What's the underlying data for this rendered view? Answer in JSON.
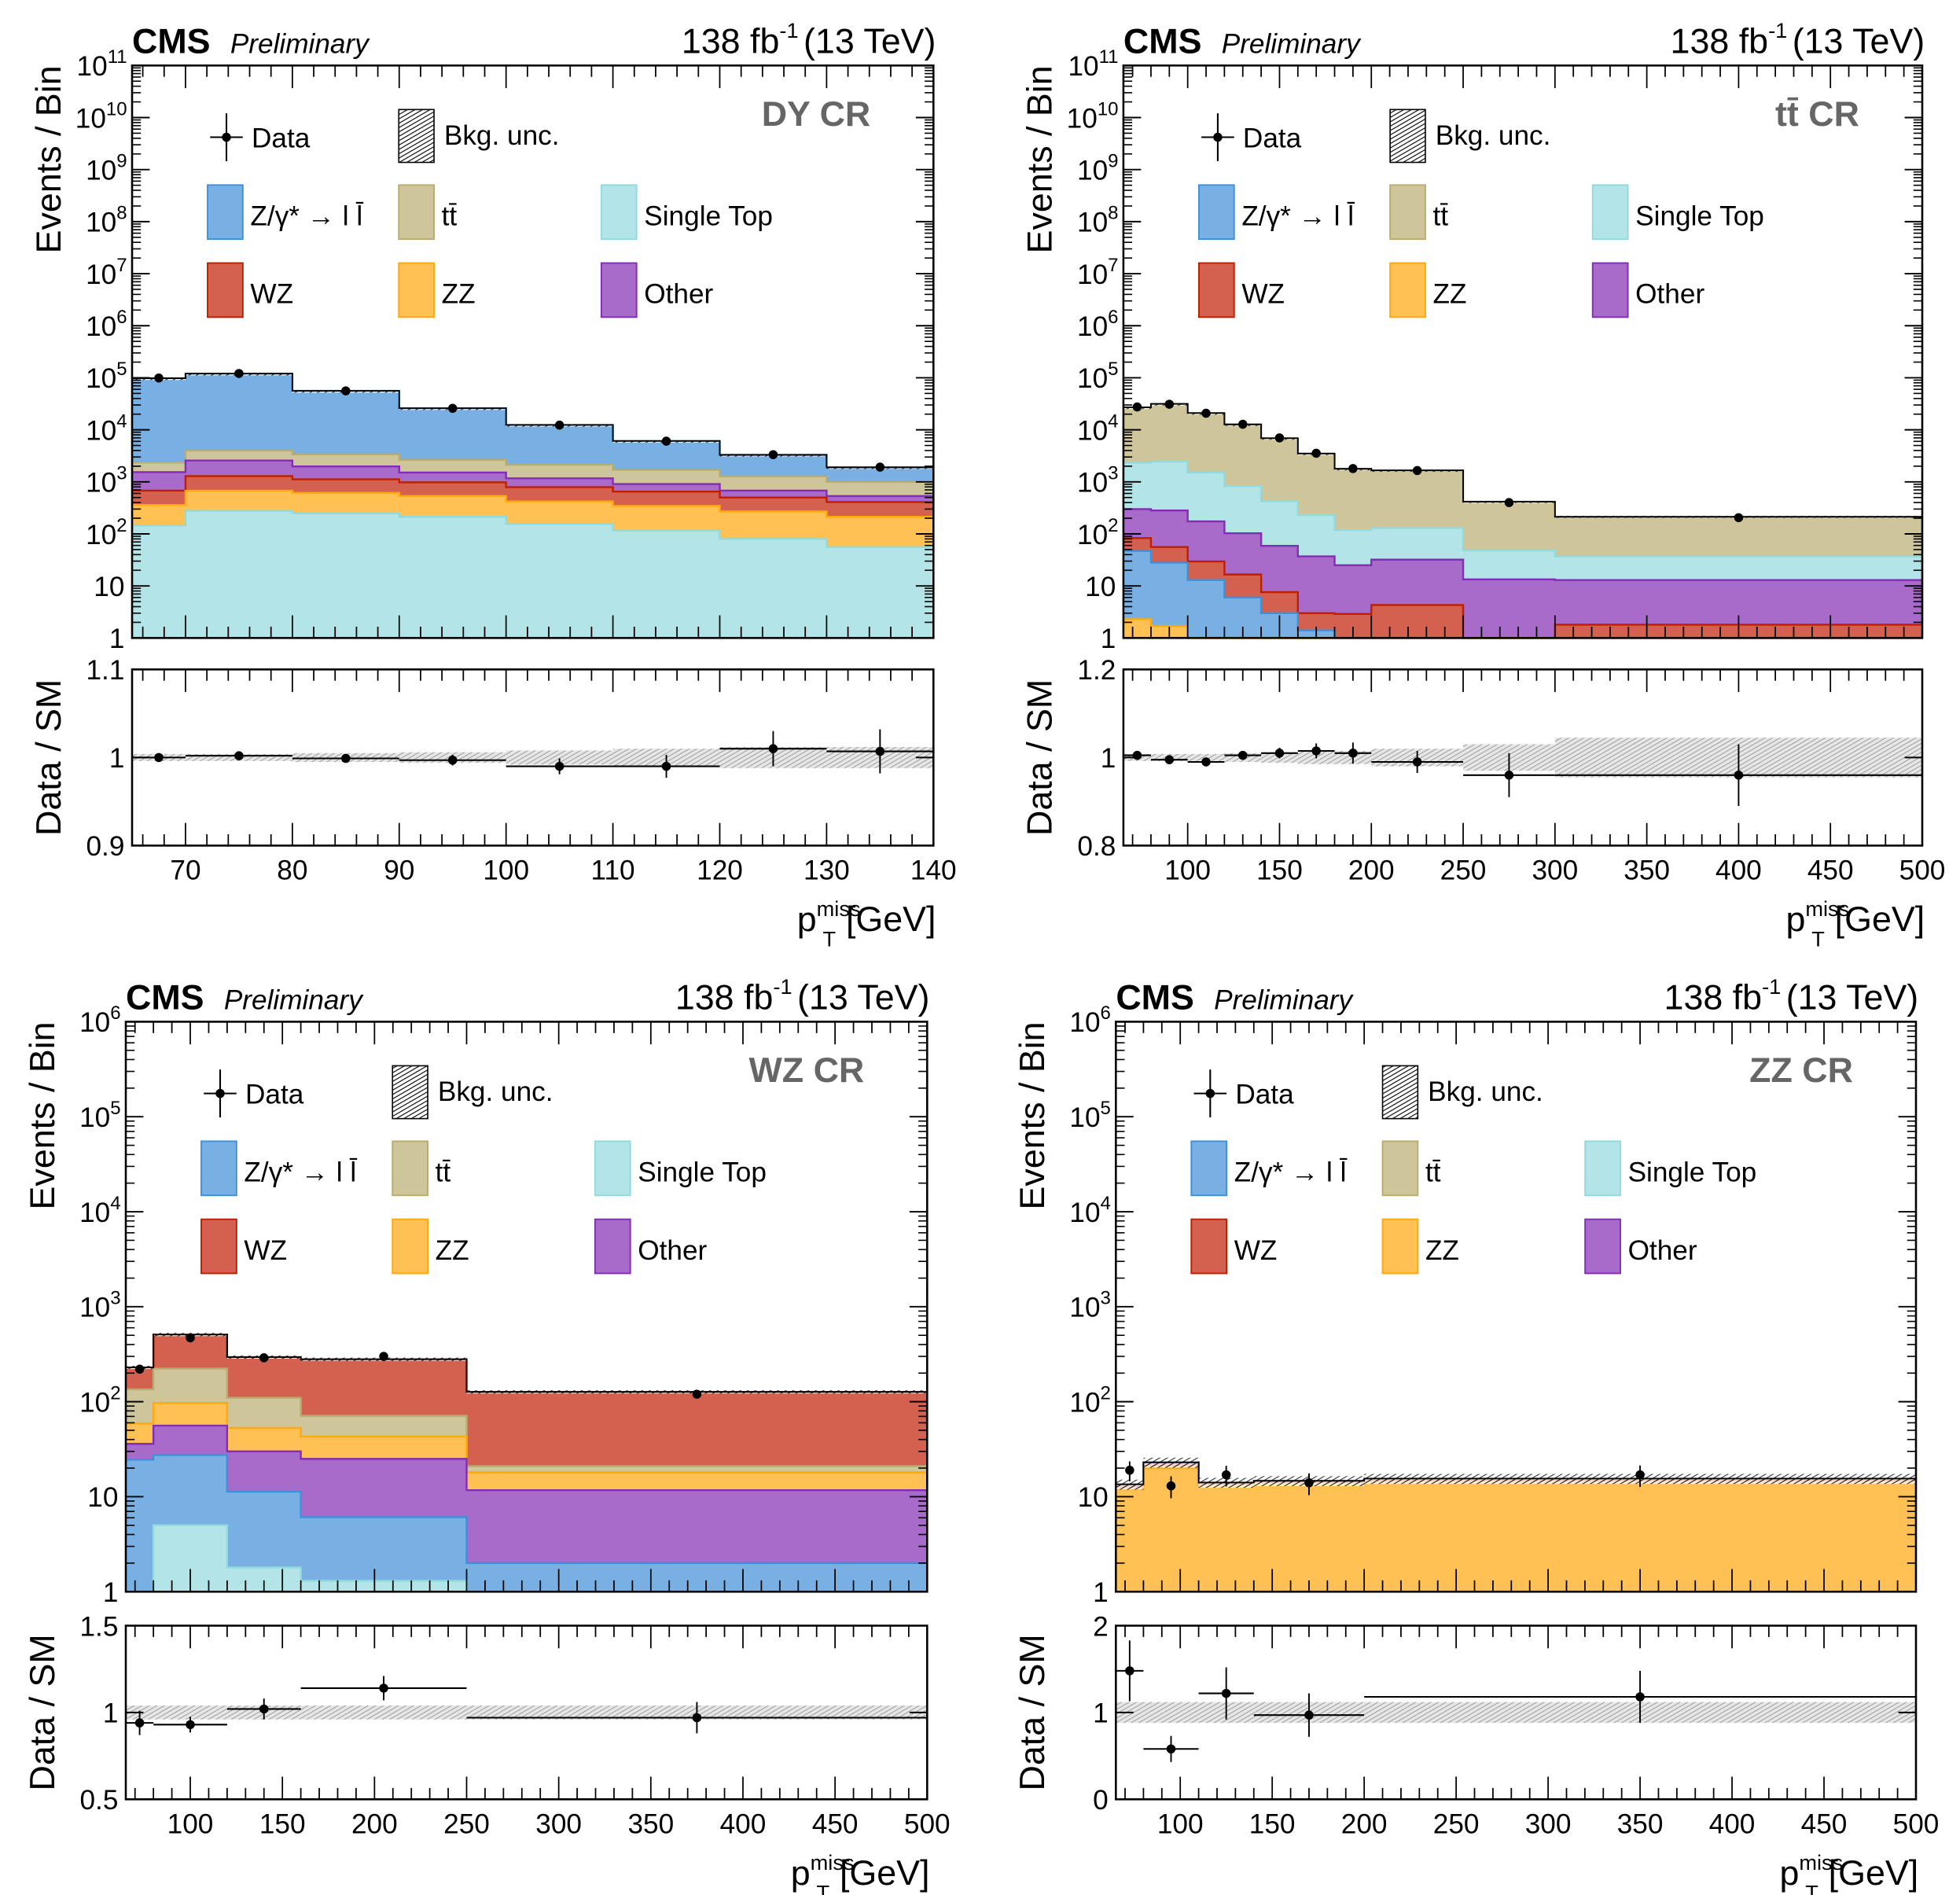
{
  "header": {
    "experiment": "CMS",
    "status": "Preliminary",
    "lumi": "138 fb",
    "lumi_exp": "-1",
    "energy": "(13 TeV)"
  },
  "legend": {
    "data": "Data",
    "unc": "Bkg. unc."
  },
  "processes": [
    {
      "key": "st",
      "name": "Single Top",
      "fill": "#b2e4e8",
      "line": "#92dadd"
    },
    {
      "key": "zz",
      "name": "ZZ",
      "fill": "#ffc153",
      "line": "#ffa90e"
    },
    {
      "key": "wz",
      "name": "WZ",
      "fill": "#d4614f",
      "line": "#bd1f01"
    },
    {
      "key": "other",
      "name": "Other",
      "fill": "#a96bc9",
      "line": "#832db6"
    },
    {
      "key": "tt",
      "name": "tt̄",
      "fill": "#cfc59a",
      "line": "#b9ac70"
    },
    {
      "key": "dy",
      "name": "Z/γ* → l l̄",
      "fill": "#79b0e4",
      "line": "#3f90da"
    }
  ],
  "legend_order": [
    "dy",
    "tt",
    "st",
    "wz",
    "zz",
    "other"
  ],
  "chart_data": [
    {
      "type": "bar",
      "stacked": true,
      "region_label": "DY CR",
      "xlabel_main": "p",
      "xlabel_sub": "T",
      "xlabel_sup": "miss",
      "xlabel_unit": "[GeV]",
      "ylabel": "Events / Bin",
      "ylog": true,
      "ylim": [
        1,
        100000000000.0
      ],
      "xlim": [
        65,
        140
      ],
      "x_ticks": [
        70,
        80,
        90,
        100,
        110,
        120,
        130,
        140
      ],
      "x_edges": [
        65,
        70,
        80,
        90,
        100,
        110,
        120,
        130,
        140
      ],
      "stack_order": [
        "st",
        "zz",
        "wz",
        "other",
        "tt",
        "dy"
      ],
      "series": {
        "st": [
          145,
          277,
          250,
          213,
          155,
          115,
          80,
          56
        ],
        "zz": [
          215,
          398,
          365,
          322,
          265,
          230,
          190,
          157
        ],
        "wz": [
          320,
          615,
          505,
          445,
          370,
          305,
          230,
          197
        ],
        "other": [
          860,
          1280,
          860,
          530,
          380,
          260,
          180,
          125
        ],
        "tt": [
          810,
          1430,
          1400,
          1140,
          970,
          790,
          590,
          465
        ],
        "dy": [
          95650,
          116000,
          52620,
          23350,
          10260,
          4400,
          2030,
          900
        ]
      },
      "data": {
        "x": [
          67.5,
          75,
          85,
          95,
          105,
          115,
          125,
          135
        ],
        "y": [
          99000,
          121000,
          56000,
          25900,
          12300,
          6050,
          3330,
          1920
        ]
      },
      "bkg_unc_rel": [
        0.004,
        0.004,
        0.005,
        0.006,
        0.008,
        0.01,
        0.012,
        0.012
      ],
      "ratio": {
        "ylabel": "Data / SM",
        "ylim": [
          0.9,
          1.1
        ],
        "ticks": [
          0.9,
          1,
          1.1
        ],
        "tick_labels": [
          "0.9",
          "1",
          "1.1"
        ],
        "values": [
          1.0,
          1.002,
          0.999,
          0.997,
          0.99,
          0.99,
          1.01,
          1.007
        ],
        "errors": [
          0.003,
          0.003,
          0.004,
          0.006,
          0.009,
          0.013,
          0.02,
          0.025
        ]
      }
    },
    {
      "type": "bar",
      "stacked": true,
      "region_label": "tt̄ CR",
      "xlabel_main": "p",
      "xlabel_sub": "T",
      "xlabel_sup": "miss",
      "xlabel_unit": "[GeV]",
      "ylabel": "Events / Bin",
      "ylog": true,
      "ylim": [
        1,
        100000000000.0
      ],
      "xlim": [
        65,
        500
      ],
      "x_ticks": [
        100,
        150,
        200,
        250,
        300,
        350,
        400,
        450,
        500
      ],
      "x_edges": [
        65,
        80,
        100,
        120,
        140,
        160,
        180,
        200,
        250,
        300,
        500
      ],
      "stack_order": [
        "zz",
        "dy",
        "wz",
        "other",
        "st",
        "tt"
      ],
      "series": {
        "zz": [
          2.3,
          1.7,
          0.3,
          0.2,
          0.1,
          0.05,
          0,
          0,
          0,
          0
        ],
        "dy": [
          44.7,
          26.3,
          12.7,
          5.8,
          2.9,
          1.35,
          0.1,
          0,
          0,
          0
        ],
        "wz": [
          36,
          28,
          16.5,
          10.6,
          4.6,
          1.6,
          2.8,
          4.3,
          0,
          1.8
        ],
        "other": [
          217,
          226,
          144.5,
          86.4,
          51.4,
          34,
          22.1,
          27.7,
          13.4,
          11.2
        ],
        "st": [
          2030,
          2168,
          1336,
          727,
          366,
          193,
          93,
          98,
          34.6,
          24
        ],
        "tt": [
          24670,
          29050,
          19490,
          11870,
          6475,
          3270,
          1662,
          1530,
          367,
          176
        ]
      },
      "data": {
        "x": [
          72.5,
          90,
          110,
          130,
          150,
          170,
          190,
          225,
          275,
          400
        ],
        "y": [
          27500,
          31000,
          20800,
          12800,
          7000,
          3550,
          1800,
          1650,
          400,
          205
        ]
      },
      "bkg_unc_rel": [
        0.008,
        0.008,
        0.008,
        0.01,
        0.012,
        0.015,
        0.015,
        0.02,
        0.03,
        0.045
      ],
      "ratio": {
        "ylabel": "Data / SM",
        "ylim": [
          0.8,
          1.2
        ],
        "ticks": [
          0.8,
          1,
          1.2
        ],
        "tick_labels": [
          "0.8",
          "1",
          "1.2"
        ],
        "values": [
          1.005,
          0.995,
          0.99,
          1.005,
          1.01,
          1.015,
          1.01,
          0.99,
          0.96,
          0.96
        ],
        "errors": [
          0.006,
          0.006,
          0.007,
          0.009,
          0.012,
          0.017,
          0.024,
          0.025,
          0.05,
          0.07
        ]
      }
    },
    {
      "type": "bar",
      "stacked": true,
      "region_label": "WZ CR",
      "xlabel_main": "p",
      "xlabel_sub": "T",
      "xlabel_sup": "miss",
      "xlabel_unit": "[GeV]",
      "ylabel": "Events / Bin",
      "ylog": true,
      "ylim": [
        1,
        1000000.0
      ],
      "xlim": [
        65,
        500
      ],
      "x_ticks": [
        100,
        150,
        200,
        250,
        300,
        350,
        400,
        450,
        500
      ],
      "x_edges": [
        65,
        80,
        120,
        160,
        250,
        500
      ],
      "stack_order": [
        "st",
        "dy",
        "other",
        "zz",
        "tt",
        "wz"
      ],
      "series": {
        "st": [
          0,
          5,
          1.8,
          1.3,
          0
        ],
        "dy": [
          24.5,
          22.5,
          9.5,
          4.8,
          2
        ],
        "other": [
          11.5,
          28.5,
          18.7,
          18.9,
          9.7
        ],
        "zz": [
          23,
          41,
          23,
          18,
          6.3
        ],
        "tt": [
          76,
          126,
          57,
          28,
          3
        ],
        "wz": [
          95,
          287,
          185,
          209,
          106
        ]
      },
      "data": {
        "x": [
          72.5,
          100,
          140,
          205,
          375
        ],
        "y": [
          220,
          470,
          290,
          300,
          120
        ]
      },
      "bkg_unc_rel": [
        0.04,
        0.04,
        0.04,
        0.04,
        0.04
      ],
      "ratio": {
        "ylabel": "Data / SM",
        "ylim": [
          0.5,
          1.5
        ],
        "ticks": [
          0.5,
          1,
          1.5
        ],
        "tick_labels": [
          "0.5",
          "1",
          "1.5"
        ],
        "values": [
          0.94,
          0.93,
          1.02,
          1.14,
          0.97
        ],
        "errors": [
          0.07,
          0.045,
          0.06,
          0.07,
          0.09
        ]
      }
    },
    {
      "type": "bar",
      "stacked": true,
      "region_label": "ZZ CR",
      "xlabel_main": "p",
      "xlabel_sub": "T",
      "xlabel_sup": "miss",
      "xlabel_unit": "[GeV]",
      "ylabel": "Events / Bin",
      "ylog": true,
      "ylim": [
        1,
        1000000.0
      ],
      "xlim": [
        65,
        500
      ],
      "x_ticks": [
        100,
        150,
        200,
        250,
        300,
        350,
        400,
        450,
        500
      ],
      "x_edges": [
        65,
        80,
        110,
        140,
        200,
        500
      ],
      "stack_order": [
        "zz",
        "tt",
        "wz",
        "other"
      ],
      "series": {
        "zz": [
          12,
          20,
          13,
          13.5,
          14
        ],
        "tt": [
          0.2,
          0.5,
          0.1,
          0.1,
          0.2
        ],
        "wz": [
          0.5,
          1,
          0.4,
          0.5,
          0.5
        ],
        "other": [
          0.8,
          1.5,
          0.6,
          0.6,
          0.8
        ]
      },
      "data": {
        "x": [
          72.5,
          95,
          125,
          170,
          350
        ],
        "y": [
          19,
          13,
          17,
          14,
          17
        ]
      },
      "bkg_unc_rel": [
        0.12,
        0.12,
        0.12,
        0.12,
        0.12
      ],
      "ratio": {
        "ylabel": "Data / SM",
        "ylim": [
          0,
          2
        ],
        "ticks": [
          0,
          1,
          2
        ],
        "tick_labels": [
          "0",
          "1",
          "2"
        ],
        "values": [
          1.48,
          0.58,
          1.22,
          0.97,
          1.18
        ],
        "errors": [
          0.35,
          0.15,
          0.3,
          0.25,
          0.3
        ]
      }
    }
  ]
}
